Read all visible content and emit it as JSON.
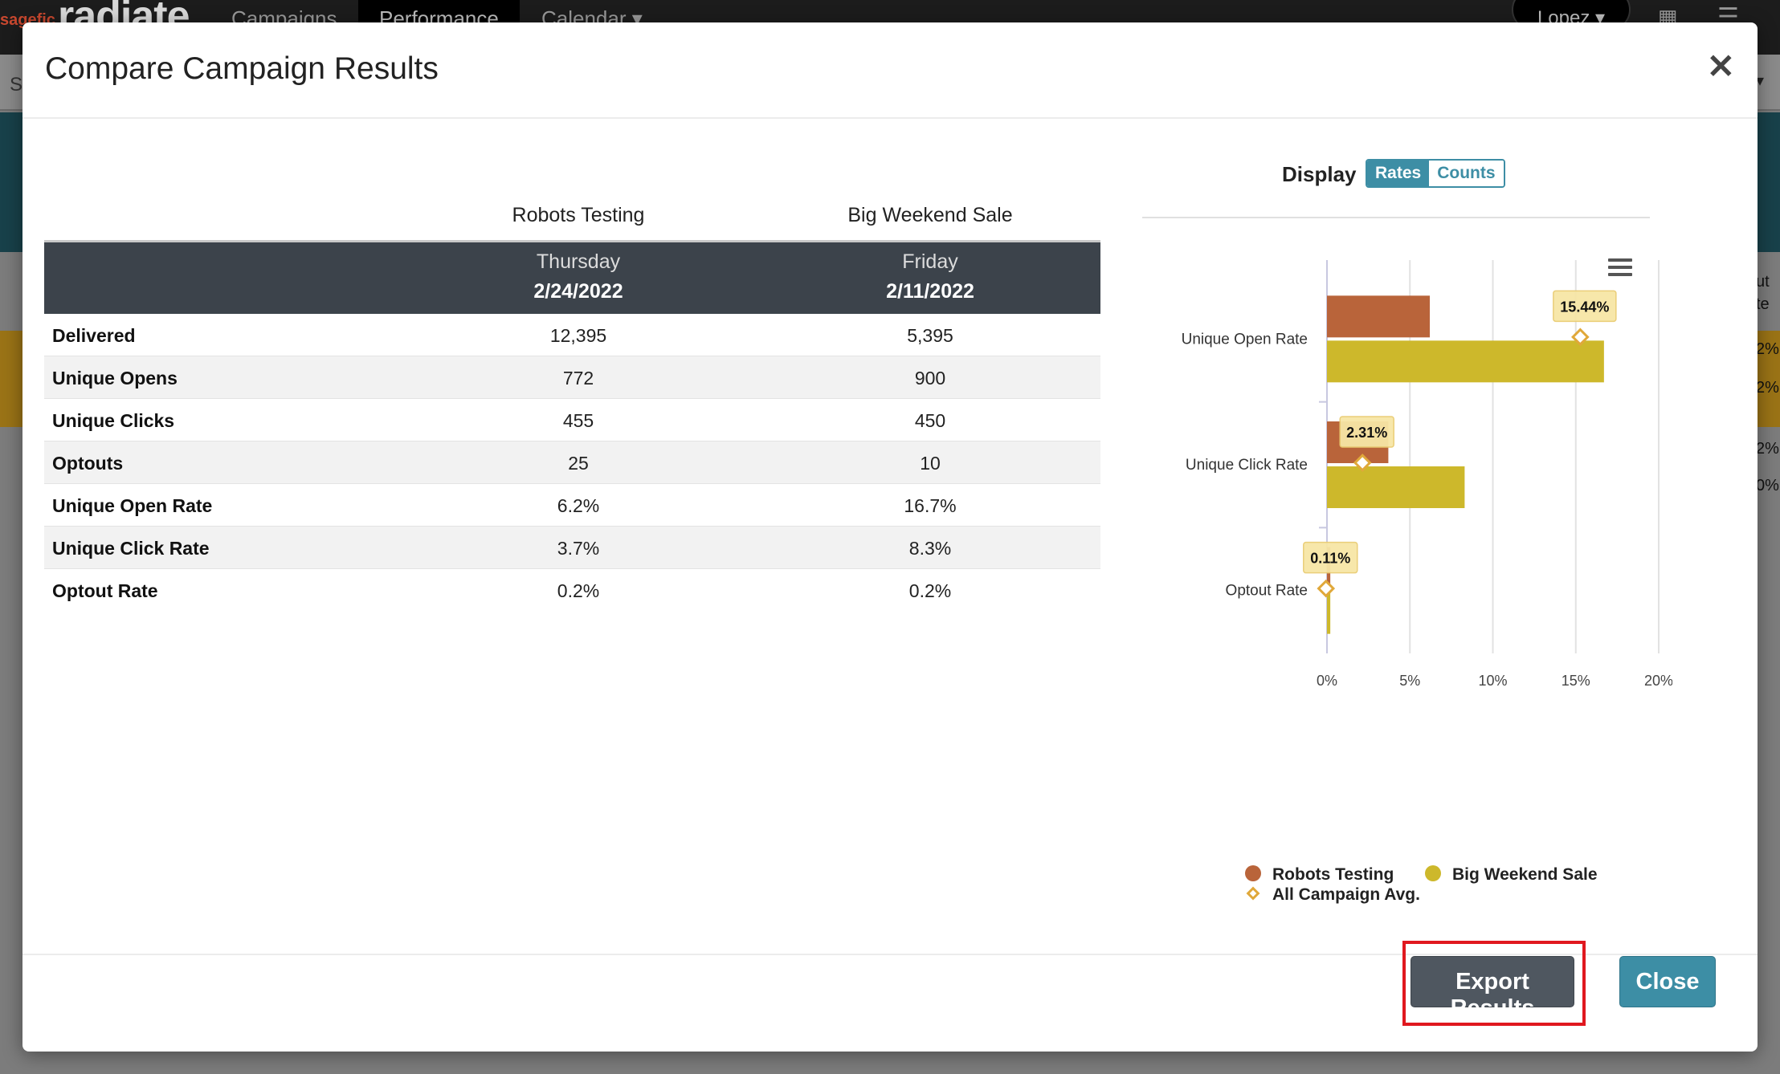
{
  "app": {
    "logo_small": "sagefic",
    "logo": "radiate",
    "nav": [
      "Campaigns",
      "Performance",
      "Calendar"
    ],
    "nav_caret": "▾",
    "user": "Lopez",
    "user_caret": "▾",
    "subbar_text": "S",
    "right_col": [
      "ut",
      "te",
      "2%",
      "2%",
      "2%",
      "0%"
    ]
  },
  "modal": {
    "title": "Compare Campaign Results",
    "close_glyph": "✕"
  },
  "table": {
    "campaigns": [
      {
        "name": "Robots Testing",
        "day": "Thursday",
        "date": "2/24/2022"
      },
      {
        "name": "Big Weekend Sale",
        "day": "Friday",
        "date": "2/11/2022"
      }
    ],
    "rows": [
      {
        "label": "Delivered",
        "values": [
          "12,395",
          "5,395"
        ]
      },
      {
        "label": "Unique Opens",
        "values": [
          "772",
          "900"
        ]
      },
      {
        "label": "Unique Clicks",
        "values": [
          "455",
          "450"
        ]
      },
      {
        "label": "Optouts",
        "values": [
          "25",
          "10"
        ]
      },
      {
        "label": "Unique Open Rate",
        "values": [
          "6.2%",
          "16.7%"
        ]
      },
      {
        "label": "Unique Click Rate",
        "values": [
          "3.7%",
          "8.3%"
        ]
      },
      {
        "label": "Optout Rate",
        "values": [
          "0.2%",
          "0.2%"
        ]
      }
    ]
  },
  "display": {
    "label": "Display",
    "options": [
      "Rates",
      "Counts"
    ],
    "selected": "Rates"
  },
  "colors": {
    "series1": "#b9643a",
    "series2": "#cdb82b",
    "avg": "#e0a83a",
    "accent": "#3d8ea5",
    "highlight": "#e0181f"
  },
  "chart_data": {
    "type": "bar",
    "orientation": "horizontal",
    "categories": [
      "Unique Open Rate",
      "Unique Click Rate",
      "Optout Rate"
    ],
    "series": [
      {
        "name": "Robots Testing",
        "values": [
          6.2,
          3.7,
          0.2
        ]
      },
      {
        "name": "Big Weekend Sale",
        "values": [
          16.7,
          8.3,
          0.2
        ]
      }
    ],
    "avg_series": {
      "name": "All Campaign Avg.",
      "values": [
        15.44,
        2.31,
        0.11
      ],
      "labels": [
        "15.44%",
        "2.31%",
        "0.11%"
      ]
    },
    "x_ticks": [
      "0%",
      "5%",
      "10%",
      "15%",
      "20%"
    ],
    "xlim": [
      0,
      20
    ],
    "grid": true,
    "legend_position": "bottom"
  },
  "footer": {
    "export_label": "Export Results",
    "close_label": "Close"
  }
}
